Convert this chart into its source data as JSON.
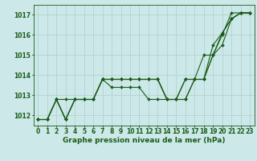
{
  "title": "Graphe pression niveau de la mer (hPa)",
  "background_color": "#cce8e8",
  "grid_color": "#b0cccc",
  "line_color": "#1a5c1a",
  "xlim": [
    -0.5,
    23.5
  ],
  "ylim": [
    1011.5,
    1017.5
  ],
  "yticks": [
    1012,
    1013,
    1014,
    1015,
    1016,
    1017
  ],
  "xticks": [
    0,
    1,
    2,
    3,
    4,
    5,
    6,
    7,
    8,
    9,
    10,
    11,
    12,
    13,
    14,
    15,
    16,
    17,
    18,
    19,
    20,
    21,
    22,
    23
  ],
  "series": [
    [
      1011.8,
      1011.8,
      1012.8,
      1011.8,
      1012.8,
      1012.8,
      1012.8,
      1013.8,
      1013.8,
      1013.8,
      1013.8,
      1013.8,
      1013.8,
      1013.8,
      1012.8,
      1012.8,
      1013.8,
      1013.8,
      1013.8,
      1015.5,
      1016.1,
      1016.8,
      1017.1,
      1017.1
    ],
    [
      1011.8,
      1011.8,
      1012.8,
      1012.8,
      1012.8,
      1012.8,
      1012.8,
      1013.8,
      1013.8,
      1013.8,
      1013.8,
      1013.8,
      1013.8,
      1013.8,
      1012.8,
      1012.8,
      1012.8,
      1013.8,
      1013.8,
      1015.0,
      1015.5,
      1016.8,
      1017.1,
      1017.1
    ],
    [
      1011.8,
      1011.8,
      1012.8,
      1011.8,
      1012.8,
      1012.8,
      1012.8,
      1013.8,
      1013.4,
      1013.4,
      1013.4,
      1013.4,
      1012.8,
      1012.8,
      1012.8,
      1012.8,
      1013.8,
      1013.8,
      1015.0,
      1015.0,
      1016.1,
      1016.8,
      1017.1,
      1017.1
    ],
    [
      1011.8,
      1011.8,
      1012.8,
      1011.8,
      1012.8,
      1012.8,
      1012.8,
      1013.8,
      1013.8,
      1013.8,
      1013.8,
      1013.8,
      1013.8,
      1013.8,
      1012.8,
      1012.8,
      1012.8,
      1013.8,
      1013.8,
      1015.0,
      1016.0,
      1017.1,
      1017.1,
      1017.1
    ]
  ],
  "marker": "D",
  "markersize": 2.0,
  "linewidth": 0.8,
  "title_fontsize": 6.5,
  "tick_fontsize": 5.5
}
